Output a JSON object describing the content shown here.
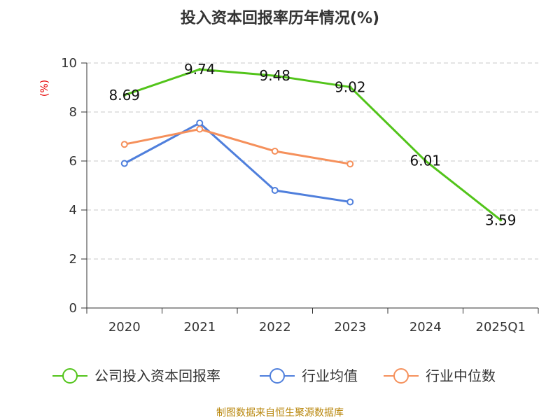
{
  "chart_data": {
    "type": "line",
    "title": "投入资本回报率历年情况(%)",
    "ylabel": "(%)",
    "xlabel": "",
    "ylim": [
      0,
      10
    ],
    "yticks": [
      0,
      2,
      4,
      6,
      8,
      10
    ],
    "categories": [
      "2020",
      "2021",
      "2022",
      "2023",
      "2024",
      "2025Q1"
    ],
    "grid": true,
    "legend_position": "bottom",
    "series": [
      {
        "name": "公司投入资本回报率",
        "color": "#52c41a",
        "values": [
          8.69,
          9.74,
          9.48,
          9.02,
          6.01,
          3.59
        ],
        "show_labels": true
      },
      {
        "name": "行业均值",
        "color": "#4f7fdc",
        "values": [
          5.9,
          7.55,
          4.8,
          4.33,
          null,
          null
        ],
        "show_labels": false
      },
      {
        "name": "行业中位数",
        "color": "#f5905b",
        "values": [
          6.68,
          7.3,
          6.4,
          5.88,
          null,
          null
        ],
        "show_labels": false
      }
    ],
    "source": "制图数据来自恒生聚源数据库"
  }
}
